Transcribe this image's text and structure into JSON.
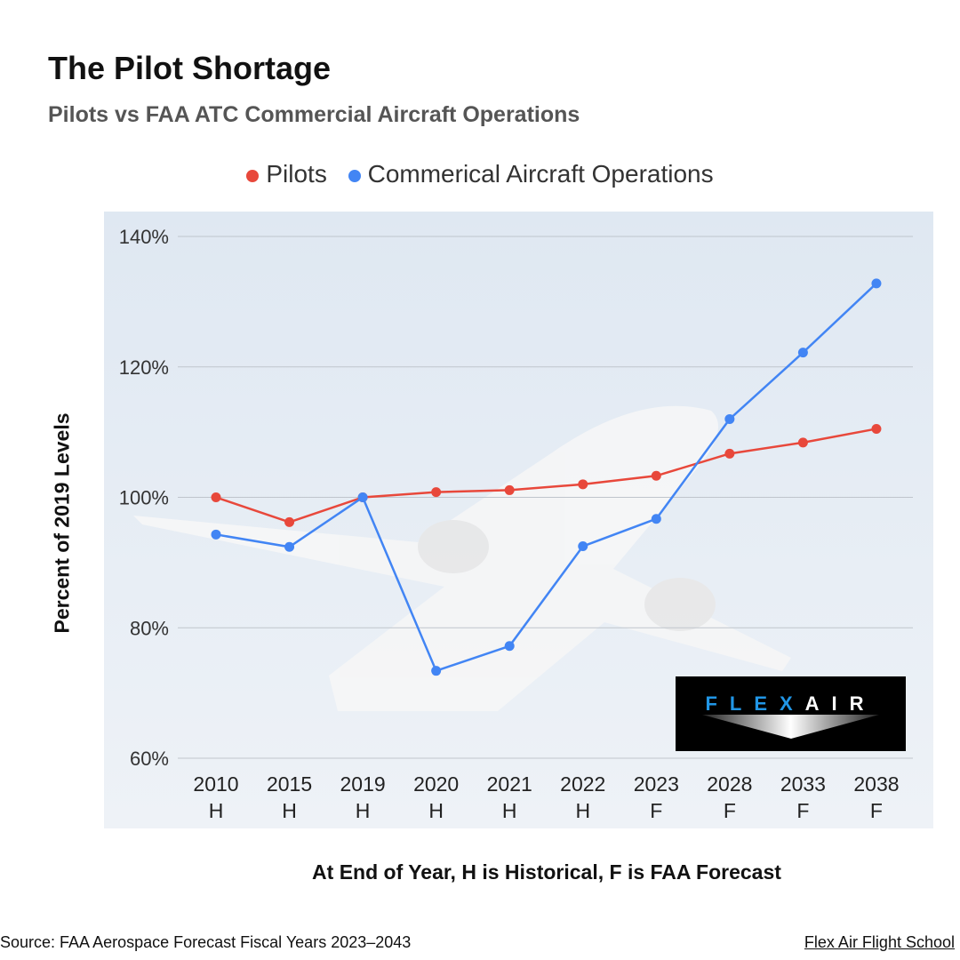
{
  "title": "The Pilot Shortage",
  "subtitle": "Pilots vs FAA ATC Commercial Aircraft Operations",
  "source": "Source: FAA Aerospace Forecast Fiscal Years 2023–2043",
  "credit": "Flex Air Flight School",
  "logo": {
    "text_left": "FLEX",
    "text_right": "AIR"
  },
  "chart_data": {
    "type": "line",
    "xlabel": "At End of Year, H is Historical, F is FAA Forecast",
    "ylabel": "Percent of 2019 Levels",
    "categories": [
      "2010",
      "2015",
      "2019",
      "2020",
      "2021",
      "2022",
      "2023",
      "2028",
      "2033",
      "2038"
    ],
    "category_sublabels": [
      "H",
      "H",
      "H",
      "H",
      "H",
      "H",
      "F",
      "F",
      "F",
      "F"
    ],
    "ylim": [
      60,
      140
    ],
    "yticks": [
      60,
      80,
      100,
      120,
      140
    ],
    "ytick_labels": [
      "60%",
      "80%",
      "100%",
      "120%",
      "140%"
    ],
    "grid": true,
    "legend": "top",
    "series": [
      {
        "name": "Pilots",
        "color": "#e8483b",
        "values": [
          100,
          96.2,
          100,
          100.8,
          101.1,
          102.0,
          103.3,
          106.7,
          108.4,
          110.5
        ]
      },
      {
        "name": "Commerical Aircraft Operations",
        "color": "#4285f4",
        "values": [
          94.3,
          92.4,
          100,
          73.4,
          77.2,
          92.5,
          96.7,
          112.0,
          122.2,
          132.8
        ]
      }
    ]
  }
}
